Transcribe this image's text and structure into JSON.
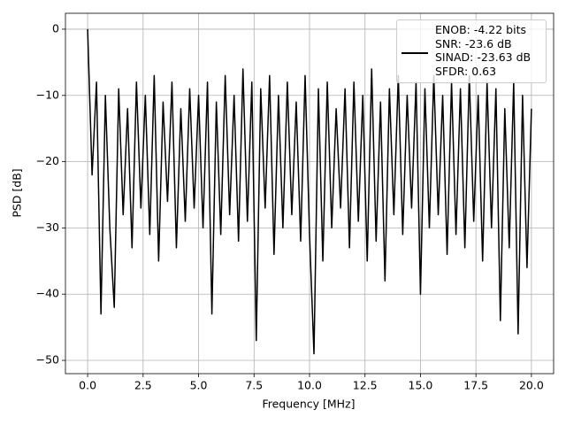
{
  "chart_data": {
    "type": "line",
    "xlabel": "Frequency [MHz]",
    "ylabel": "PSD [dB]",
    "x": [
      0,
      0.2,
      0.4,
      0.6,
      0.8,
      1.0,
      1.2,
      1.4,
      1.6,
      1.8,
      2.0,
      2.2,
      2.4,
      2.6,
      2.8,
      3.0,
      3.2,
      3.4,
      3.6,
      3.8,
      4.0,
      4.2,
      4.4,
      4.6,
      4.8,
      5.0,
      5.2,
      5.4,
      5.6,
      5.8,
      6.0,
      6.2,
      6.4,
      6.6,
      6.8,
      7.0,
      7.2,
      7.4,
      7.6,
      7.8,
      8.0,
      8.2,
      8.4,
      8.6,
      8.8,
      9.0,
      9.2,
      9.4,
      9.6,
      9.8,
      10.0,
      10.2,
      10.4,
      10.6,
      10.8,
      11.0,
      11.2,
      11.4,
      11.6,
      11.8,
      12.0,
      12.2,
      12.4,
      12.6,
      12.8,
      13.0,
      13.2,
      13.4,
      13.6,
      13.8,
      14.0,
      14.2,
      14.4,
      14.6,
      14.8,
      15.0,
      15.2,
      15.4,
      15.6,
      15.8,
      16.0,
      16.2,
      16.4,
      16.6,
      16.8,
      17.0,
      17.2,
      17.4,
      17.6,
      17.8,
      18.0,
      18.2,
      18.4,
      18.6,
      18.8,
      19.0,
      19.2,
      19.4,
      19.6,
      19.8,
      20.0
    ],
    "series": [
      {
        "name": "ENOB: -4.22 bits\nSNR: -23.6 dB\nSINAD: -23.63 dB\nSFDR: 0.63",
        "color": "#000000",
        "values": [
          0,
          -22,
          -8,
          -43,
          -10,
          -30,
          -42,
          -9,
          -28,
          -12,
          -33,
          -8,
          -27,
          -10,
          -31,
          -7,
          -35,
          -11,
          -26,
          -8,
          -33,
          -12,
          -29,
          -9,
          -27,
          -10,
          -30,
          -8,
          -43,
          -11,
          -31,
          -7,
          -28,
          -10,
          -32,
          -6,
          -29,
          -8,
          -47,
          -9,
          -27,
          -7,
          -34,
          -10,
          -30,
          -8,
          -28,
          -11,
          -32,
          -7,
          -31,
          -49,
          -9,
          -35,
          -8,
          -30,
          -12,
          -27,
          -9,
          -33,
          -8,
          -29,
          -10,
          -35,
          -6,
          -32,
          -11,
          -38,
          -9,
          -28,
          -7,
          -31,
          -10,
          -27,
          -8,
          -40,
          -9,
          -30,
          -7,
          -28,
          -10,
          -34,
          -8,
          -31,
          -9,
          -33,
          -7,
          -29,
          -10,
          -35,
          -8,
          -30,
          -9,
          -44,
          -12,
          -33,
          -8,
          -46,
          -10,
          -36,
          -12
        ]
      }
    ],
    "xlim": [
      -1,
      21
    ],
    "ylim": [
      -52,
      2.4
    ],
    "xticks": [
      {
        "value": 0,
        "label": "0.0"
      },
      {
        "value": 2.5,
        "label": "2.5"
      },
      {
        "value": 5,
        "label": "5.0"
      },
      {
        "value": 7.5,
        "label": "7.5"
      },
      {
        "value": 10,
        "label": "10.0"
      },
      {
        "value": 12.5,
        "label": "12.5"
      },
      {
        "value": 15,
        "label": "15.0"
      },
      {
        "value": 17.5,
        "label": "17.5"
      },
      {
        "value": 20,
        "label": "20.0"
      }
    ],
    "yticks": [
      0,
      {
        "value": -10,
        "label": "−10"
      },
      {
        "value": -20,
        "label": "−20"
      },
      {
        "value": -30,
        "label": "−30"
      },
      {
        "value": -40,
        "label": "−40"
      },
      {
        "value": -50,
        "label": "−50"
      }
    ],
    "grid": true,
    "legend": "upper right"
  }
}
